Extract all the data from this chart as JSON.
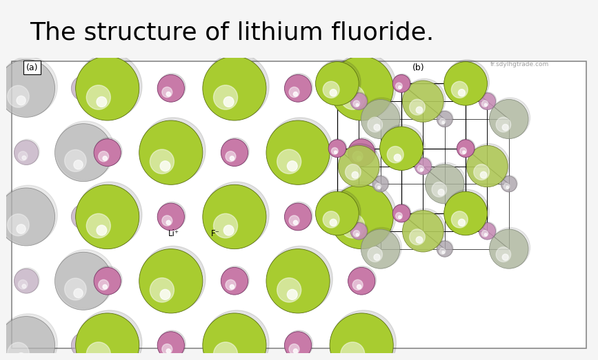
{
  "title": "The structure of lithium fluoride.",
  "title_fontsize": 26,
  "title_font": "DejaVu Sans",
  "bg_color": "#f5f5f5",
  "panel_bg": "#ffffff",
  "border_color": "#888888",
  "F_color": "#a8cc30",
  "F_color_dark": "#5a7010",
  "Li_color": "#c87aa8",
  "Li_color_dark": "#7a3868",
  "gray_color": "#a8a8a8",
  "gray_dark": "#686868",
  "label_a": "(a)",
  "label_b": "(b)",
  "label_Li": "Li⁺",
  "label_F": "F⁻",
  "watermark": "fr.sdylhgtrade.com"
}
